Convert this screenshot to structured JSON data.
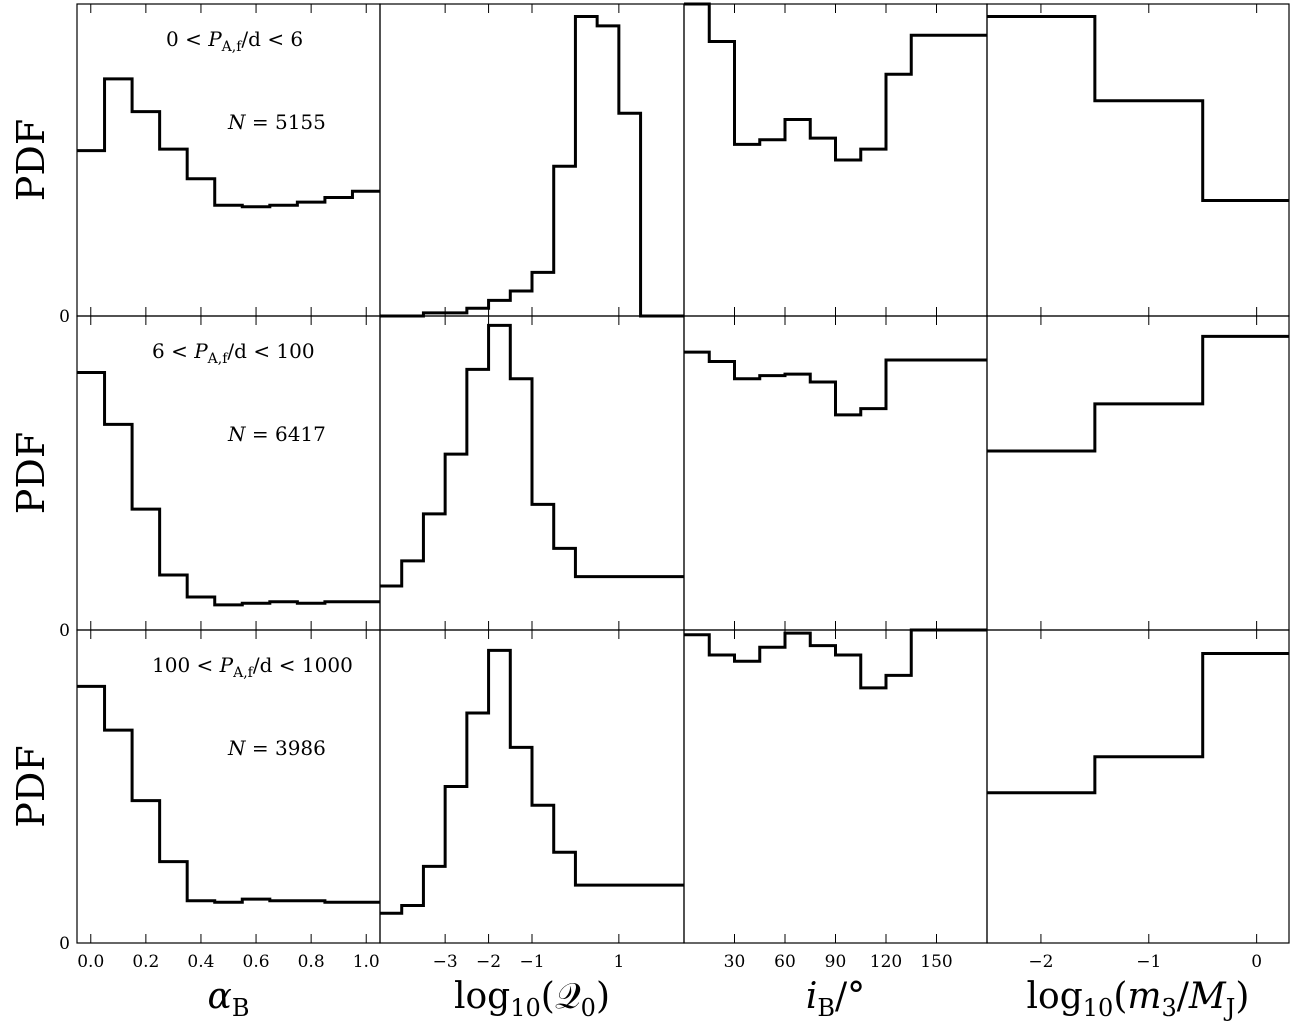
{
  "chart_data": {
    "type": "histogram-grid",
    "y_label": "PDF",
    "y_tick_label": "0",
    "columns": [
      {
        "id": "alpha",
        "xlim": [
          -0.05,
          1.05
        ],
        "ticks": [
          0.0,
          0.2,
          0.4,
          0.6,
          0.8,
          1.0
        ],
        "tick_labels": [
          "0.0",
          "0.2",
          "0.4",
          "0.6",
          "0.8",
          "1.0"
        ],
        "xlabel": {
          "main": "α",
          "sub": "B",
          "italic": true
        }
      },
      {
        "id": "logQ",
        "xlim": [
          -4.5,
          2.5
        ],
        "ticks": [
          -3,
          -2,
          -1,
          1
        ],
        "tick_labels": [
          "−3",
          "−2",
          "−1",
          "1"
        ],
        "xlabel": {
          "pre": "log",
          "pre_sub": "10",
          "open": "(",
          "main": "𝒬",
          "sub": "0",
          "close": ")"
        }
      },
      {
        "id": "inc",
        "xlim": [
          0,
          180
        ],
        "ticks": [
          30,
          60,
          90,
          120,
          150
        ],
        "tick_labels": [
          "30",
          "60",
          "90",
          "120",
          "150"
        ],
        "xlabel": {
          "main": "i",
          "sub": "B",
          "post": "/°",
          "italic": true
        }
      },
      {
        "id": "logm3",
        "xlim": [
          -2.5,
          0.3
        ],
        "ticks": [
          -2,
          -1,
          0
        ],
        "tick_labels": [
          "−2",
          "−1",
          "0"
        ],
        "xlabel": {
          "pre": "log",
          "pre_sub": "10",
          "open": "(",
          "main": "m",
          "sub": "3",
          "slash": "/",
          "main2": "M",
          "sub2": "J",
          "close": ")"
        }
      }
    ],
    "rows": [
      {
        "annotation": {
          "lo": "0",
          "hi": "6",
          "var": "P",
          "var_sub": "A,f",
          "unit": "/d"
        },
        "count_label": {
          "var": "N",
          "value": "5155"
        },
        "panels": [
          {
            "edges": [
              -0.05,
              0.05,
              0.15,
              0.25,
              0.35,
              0.45,
              0.55,
              0.65,
              0.75,
              0.85,
              0.95,
              1.05
            ],
            "values": [
              0.53,
              0.76,
              0.655,
              0.535,
              0.44,
              0.355,
              0.35,
              0.355,
              0.365,
              0.38,
              0.4
            ]
          },
          {
            "edges": [
              -4.5,
              -3.5,
              -2.5,
              -2.0,
              -1.5,
              -1.0,
              -0.5,
              0.0,
              0.5,
              1.0,
              1.5,
              2.5
            ],
            "values": [
              0.0,
              0.01,
              0.025,
              0.05,
              0.08,
              0.14,
              0.48,
              0.96,
              0.93,
              0.65,
              0.0
            ]
          },
          {
            "edges": [
              0,
              15,
              30,
              45,
              60,
              75,
              90,
              105,
              120,
              135,
              150,
              165,
              180
            ],
            "values": [
              1.0,
              0.88,
              0.55,
              0.565,
              0.63,
              0.57,
              0.5,
              0.535,
              0.775,
              0.9,
              0.9,
              0.9
            ]
          },
          {
            "edges": [
              -2.5,
              -1.5,
              -0.5,
              0.3
            ],
            "values": [
              0.96,
              0.69,
              0.37
            ]
          }
        ]
      },
      {
        "annotation": {
          "lo": "6",
          "hi": "100",
          "var": "P",
          "var_sub": "A,f",
          "unit": "/d"
        },
        "count_label": {
          "var": "N",
          "value": "6417"
        },
        "panels": [
          {
            "edges": [
              -0.05,
              0.05,
              0.15,
              0.25,
              0.35,
              0.45,
              0.55,
              0.65,
              0.75,
              0.85,
              0.95,
              1.05
            ],
            "values": [
              0.82,
              0.655,
              0.385,
              0.175,
              0.105,
              0.08,
              0.085,
              0.09,
              0.085,
              0.09,
              0.09
            ]
          },
          {
            "edges": [
              -4.5,
              -4.0,
              -3.5,
              -3.0,
              -2.5,
              -2.0,
              -1.5,
              -1.0,
              -0.5,
              0.0,
              0.5,
              1.0,
              1.5,
              2.5
            ],
            "values": [
              0.14,
              0.22,
              0.37,
              0.56,
              0.83,
              0.97,
              0.8,
              0.4,
              0.26,
              0.17,
              0.17,
              0.17,
              0.17
            ]
          },
          {
            "edges": [
              0,
              15,
              30,
              45,
              60,
              75,
              90,
              105,
              120,
              135,
              150,
              165,
              180
            ],
            "values": [
              0.885,
              0.855,
              0.8,
              0.81,
              0.815,
              0.79,
              0.685,
              0.705,
              0.86,
              0.86,
              0.86,
              0.86
            ]
          },
          {
            "edges": [
              -2.5,
              -1.5,
              -0.5,
              0.3
            ],
            "values": [
              0.57,
              0.72,
              0.935
            ]
          }
        ]
      },
      {
        "annotation": {
          "lo": "100",
          "hi": "1000",
          "var": "P",
          "var_sub": "A,f",
          "unit": "/d"
        },
        "count_label": {
          "var": "N",
          "value": "3986"
        },
        "panels": [
          {
            "edges": [
              -0.05,
              0.05,
              0.15,
              0.25,
              0.35,
              0.45,
              0.55,
              0.65,
              0.75,
              0.85,
              0.95,
              1.05
            ],
            "values": [
              0.82,
              0.68,
              0.455,
              0.26,
              0.135,
              0.13,
              0.14,
              0.135,
              0.135,
              0.13,
              0.13
            ]
          },
          {
            "edges": [
              -4.5,
              -4.0,
              -3.5,
              -3.0,
              -2.5,
              -2.0,
              -1.5,
              -1.0,
              -0.5,
              0.0,
              0.5,
              1.0,
              1.5,
              2.5
            ],
            "values": [
              0.095,
              0.12,
              0.245,
              0.5,
              0.735,
              0.935,
              0.625,
              0.44,
              0.29,
              0.185,
              0.185,
              0.185,
              0.185
            ]
          },
          {
            "edges": [
              0,
              15,
              30,
              45,
              60,
              75,
              90,
              105,
              120,
              135,
              150,
              165,
              180
            ],
            "values": [
              0.985,
              0.92,
              0.9,
              0.945,
              0.99,
              0.95,
              0.92,
              0.815,
              0.855,
              1.0,
              1.0,
              1.0
            ]
          },
          {
            "edges": [
              -2.5,
              -1.5,
              -0.5,
              0.3
            ],
            "values": [
              0.48,
              0.595,
              0.925
            ]
          }
        ]
      }
    ],
    "ylim": [
      0,
      1.0
    ],
    "grid": false
  }
}
